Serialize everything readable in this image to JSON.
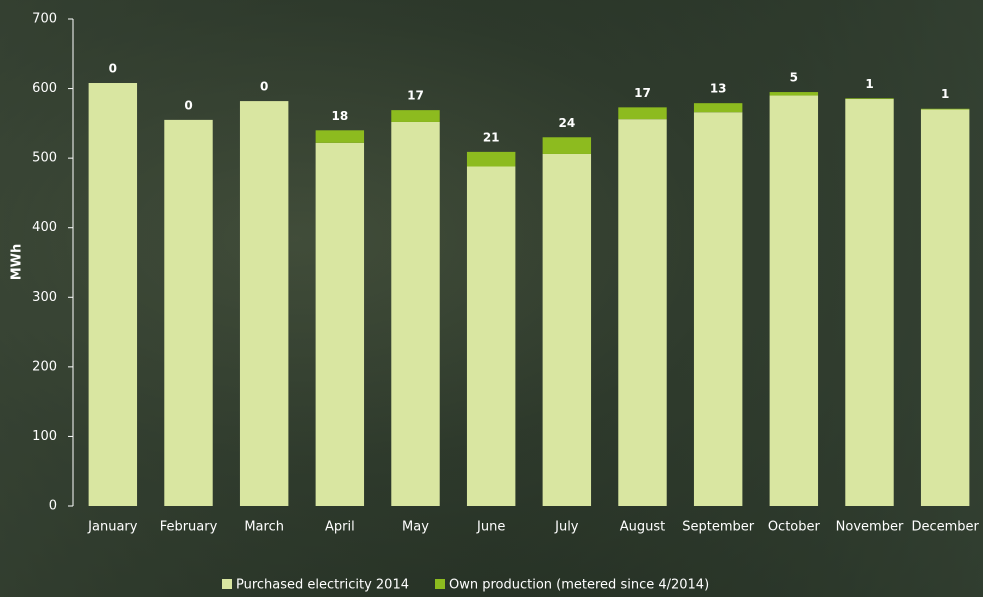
{
  "chart_data": {
    "type": "stacked_bar",
    "y_label": "MWh",
    "categories": [
      "January",
      "February",
      "March",
      "April",
      "May",
      "June",
      "July",
      "August",
      "September",
      "October",
      "November",
      "December"
    ],
    "series": [
      {
        "name": "Purchased electricity 2014",
        "color": "#d9e6a1",
        "values": [
          608,
          555,
          582,
          522,
          552,
          488,
          506,
          556,
          566,
          590,
          585,
          570
        ]
      },
      {
        "name": "Own production (metered since 4/2014)",
        "color": "#8dbb1f",
        "values": [
          0,
          0,
          0,
          18,
          17,
          21,
          24,
          17,
          13,
          5,
          1,
          1
        ]
      }
    ],
    "ylim": [
      0,
      700
    ],
    "yticks": [
      0,
      100,
      200,
      300,
      400,
      500,
      600,
      700
    ],
    "show_top_labels": true,
    "legend": "bottom"
  }
}
